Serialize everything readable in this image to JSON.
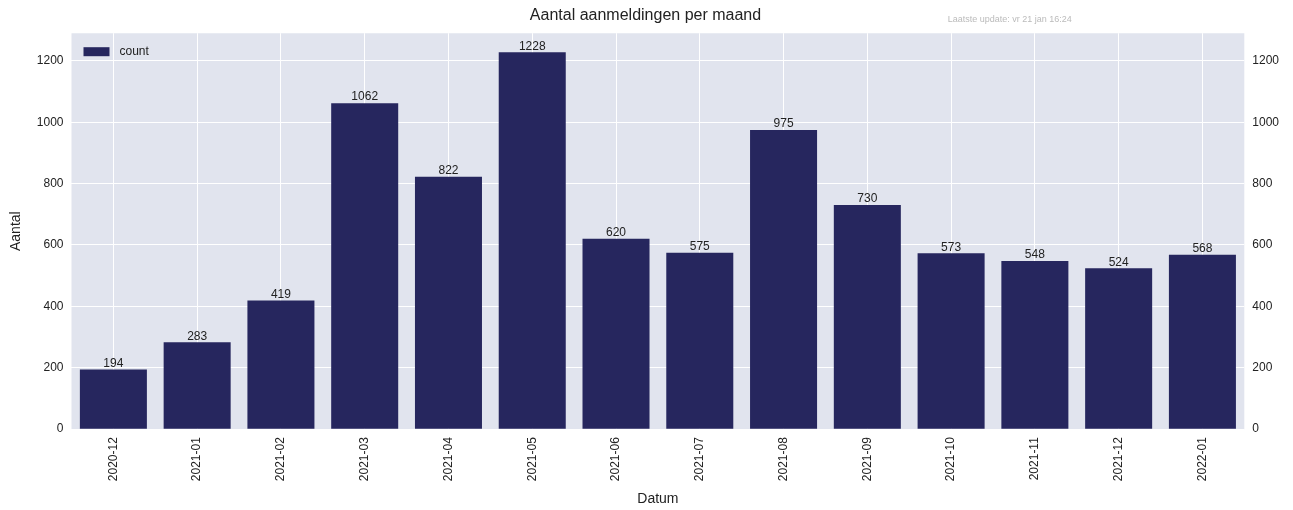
{
  "chart_data": {
    "type": "bar",
    "title": "Aantal aanmeldingen per maand",
    "xlabel": "Datum",
    "ylabel": "Aantal",
    "annotations": [
      "Laatste update: vr 21 jan 16:24"
    ],
    "categories": [
      "2020-12",
      "2021-01",
      "2021-02",
      "2021-03",
      "2021-04",
      "2021-05",
      "2021-06",
      "2021-07",
      "2021-08",
      "2021-09",
      "2021-10",
      "2021-11",
      "2021-12",
      "2022-01"
    ],
    "series": [
      {
        "name": "count",
        "color": "#26265e",
        "values": [
          194,
          283,
          419,
          1062,
          822,
          1228,
          620,
          575,
          975,
          730,
          573,
          548,
          524,
          568
        ]
      }
    ],
    "ylim": [
      0,
      1290
    ],
    "yticks": [
      0,
      200,
      400,
      600,
      800,
      1000,
      1200
    ],
    "y2lim": [
      0,
      1290
    ],
    "y2ticks": [
      0,
      200,
      400,
      600,
      800,
      1000,
      1200
    ],
    "data_labels": true,
    "grid": true,
    "legend": "top left"
  }
}
